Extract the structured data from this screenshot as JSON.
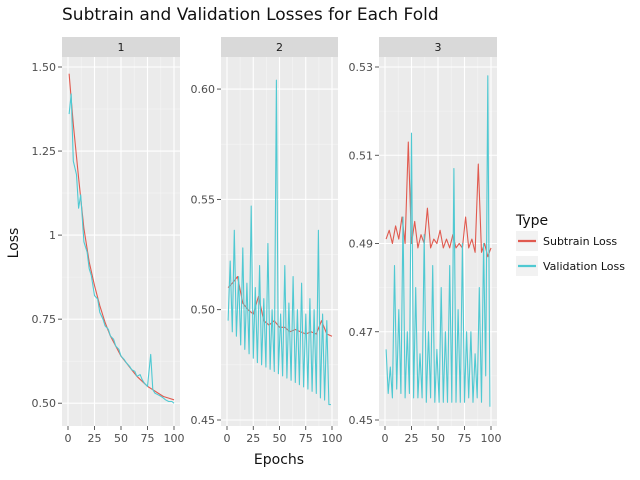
{
  "chart_data": {
    "type": "line",
    "title": "Subtrain and Validation Losses for Each Fold",
    "xlabel": "Epochs",
    "ylabel": "Loss",
    "legend": {
      "title": "Type",
      "placement": "right",
      "entries": [
        {
          "name": "Subtrain Loss",
          "color": "#e05a4f"
        },
        {
          "name": "Validation Loss",
          "color": "#4fc9d2"
        }
      ]
    },
    "grid": true,
    "facets": [
      {
        "label": "1",
        "xlim": [
          0,
          100
        ],
        "ylim": [
          0.45,
          1.5
        ],
        "x_ticks": [
          0,
          25,
          50,
          75,
          100
        ],
        "x_tick_labels": [
          "0",
          "25",
          "50",
          "75",
          "100"
        ],
        "y_ticks": [
          0.5,
          0.75,
          1.0,
          1.25,
          1.5
        ],
        "y_tick_labels": [
          "0.50",
          "0.75",
          "1",
          "1.25",
          "1.50"
        ],
        "series": [
          {
            "name": "Subtrain Loss",
            "x": [
              1,
              5,
              10,
              15,
              20,
              25,
              30,
              35,
              40,
              45,
              50,
              55,
              60,
              65,
              70,
              75,
              80,
              85,
              90,
              95,
              100
            ],
            "y": [
              1.48,
              1.33,
              1.17,
              1.02,
              0.92,
              0.85,
              0.79,
              0.74,
              0.7,
              0.67,
              0.64,
              0.62,
              0.6,
              0.58,
              0.565,
              0.55,
              0.54,
              0.53,
              0.52,
              0.515,
              0.51
            ]
          },
          {
            "name": "Validation Loss",
            "x": [
              1,
              3,
              5,
              8,
              10,
              12,
              15,
              18,
              20,
              22,
              25,
              28,
              30,
              33,
              35,
              38,
              40,
              43,
              45,
              48,
              50,
              53,
              55,
              58,
              60,
              63,
              65,
              68,
              70,
              72,
              75,
              78,
              80,
              82,
              85,
              88,
              90,
              92,
              95,
              98,
              100
            ],
            "y": [
              1.36,
              1.42,
              1.22,
              1.18,
              1.08,
              1.12,
              0.98,
              0.95,
              0.9,
              0.88,
              0.82,
              0.81,
              0.77,
              0.75,
              0.73,
              0.72,
              0.7,
              0.69,
              0.67,
              0.66,
              0.64,
              0.63,
              0.62,
              0.61,
              0.6,
              0.595,
              0.58,
              0.585,
              0.57,
              0.56,
              0.55,
              0.645,
              0.54,
              0.53,
              0.525,
              0.52,
              0.515,
              0.51,
              0.505,
              0.505,
              0.5
            ]
          }
        ]
      },
      {
        "label": "2",
        "xlim": [
          0,
          100
        ],
        "ylim": [
          0.45,
          0.61
        ],
        "x_ticks": [
          0,
          25,
          50,
          75,
          100
        ],
        "x_tick_labels": [
          "0",
          "25",
          "50",
          "75",
          "100"
        ],
        "y_ticks": [
          0.45,
          0.5,
          0.55,
          0.6
        ],
        "y_tick_labels": [
          "0.45",
          "0.50",
          "0.55",
          "0.60"
        ],
        "series": [
          {
            "name": "Subtrain Loss",
            "x": [
              1,
              5,
              10,
              15,
              20,
              25,
              30,
              35,
              40,
              45,
              50,
              55,
              60,
              65,
              70,
              75,
              80,
              85,
              90,
              95,
              100
            ],
            "y": [
              0.51,
              0.512,
              0.515,
              0.503,
              0.5,
              0.498,
              0.506,
              0.495,
              0.493,
              0.495,
              0.492,
              0.492,
              0.49,
              0.491,
              0.49,
              0.489,
              0.49,
              0.489,
              0.495,
              0.489,
              0.488
            ]
          },
          {
            "name": "Validation Loss",
            "x": [
              1,
              3,
              5,
              7,
              9,
              11,
              13,
              15,
              17,
              19,
              21,
              23,
              25,
              27,
              29,
              31,
              33,
              35,
              37,
              39,
              41,
              43,
              45,
              47,
              49,
              51,
              53,
              55,
              57,
              59,
              61,
              63,
              65,
              67,
              69,
              71,
              73,
              75,
              77,
              79,
              81,
              83,
              85,
              87,
              89,
              91,
              93,
              95,
              97,
              99
            ],
            "y": [
              0.495,
              0.522,
              0.49,
              0.536,
              0.488,
              0.515,
              0.484,
              0.528,
              0.482,
              0.512,
              0.48,
              0.547,
              0.478,
              0.51,
              0.476,
              0.52,
              0.475,
              0.505,
              0.474,
              0.53,
              0.473,
              0.5,
              0.472,
              0.604,
              0.471,
              0.498,
              0.47,
              0.52,
              0.469,
              0.503,
              0.468,
              0.515,
              0.467,
              0.5,
              0.466,
              0.512,
              0.465,
              0.498,
              0.464,
              0.505,
              0.463,
              0.5,
              0.462,
              0.536,
              0.46,
              0.498,
              0.459,
              0.495,
              0.457,
              0.457
            ]
          }
        ]
      },
      {
        "label": "3",
        "xlim": [
          0,
          100
        ],
        "ylim": [
          0.45,
          0.53
        ],
        "x_ticks": [
          0,
          25,
          50,
          75,
          100
        ],
        "x_tick_labels": [
          "0",
          "25",
          "50",
          "75",
          "100"
        ],
        "y_ticks": [
          0.45,
          0.47,
          0.49,
          0.51,
          0.53
        ],
        "y_tick_labels": [
          "0.45",
          "0.47",
          "0.49",
          "0.51",
          "0.53"
        ],
        "series": [
          {
            "name": "Subtrain Loss",
            "x": [
              1,
              4,
              7,
              10,
              13,
              16,
              19,
              22,
              25,
              28,
              31,
              34,
              37,
              40,
              43,
              46,
              49,
              52,
              55,
              58,
              61,
              64,
              67,
              70,
              73,
              76,
              79,
              82,
              85,
              88,
              91,
              94,
              97,
              100
            ],
            "y": [
              0.491,
              0.493,
              0.49,
              0.494,
              0.491,
              0.496,
              0.49,
              0.513,
              0.49,
              0.495,
              0.489,
              0.492,
              0.49,
              0.498,
              0.489,
              0.491,
              0.49,
              0.493,
              0.489,
              0.491,
              0.489,
              0.492,
              0.489,
              0.49,
              0.489,
              0.496,
              0.489,
              0.491,
              0.488,
              0.508,
              0.488,
              0.49,
              0.487,
              0.489
            ]
          },
          {
            "name": "Validation Loss",
            "x": [
              1,
              3,
              5,
              7,
              9,
              11,
              13,
              15,
              17,
              19,
              21,
              23,
              25,
              27,
              29,
              31,
              33,
              35,
              37,
              39,
              41,
              43,
              45,
              47,
              49,
              51,
              53,
              55,
              57,
              59,
              61,
              63,
              65,
              67,
              69,
              71,
              73,
              75,
              77,
              79,
              81,
              83,
              85,
              87,
              89,
              91,
              93,
              95,
              97,
              99
            ],
            "y": [
              0.466,
              0.456,
              0.462,
              0.455,
              0.485,
              0.457,
              0.475,
              0.456,
              0.496,
              0.455,
              0.47,
              0.456,
              0.515,
              0.455,
              0.48,
              0.455,
              0.465,
              0.455,
              0.492,
              0.454,
              0.47,
              0.455,
              0.485,
              0.454,
              0.466,
              0.454,
              0.48,
              0.454,
              0.47,
              0.454,
              0.485,
              0.454,
              0.507,
              0.454,
              0.475,
              0.454,
              0.49,
              0.454,
              0.47,
              0.455,
              0.47,
              0.454,
              0.465,
              0.455,
              0.48,
              0.454,
              0.49,
              0.46,
              0.528,
              0.453
            ]
          }
        ]
      }
    ]
  }
}
